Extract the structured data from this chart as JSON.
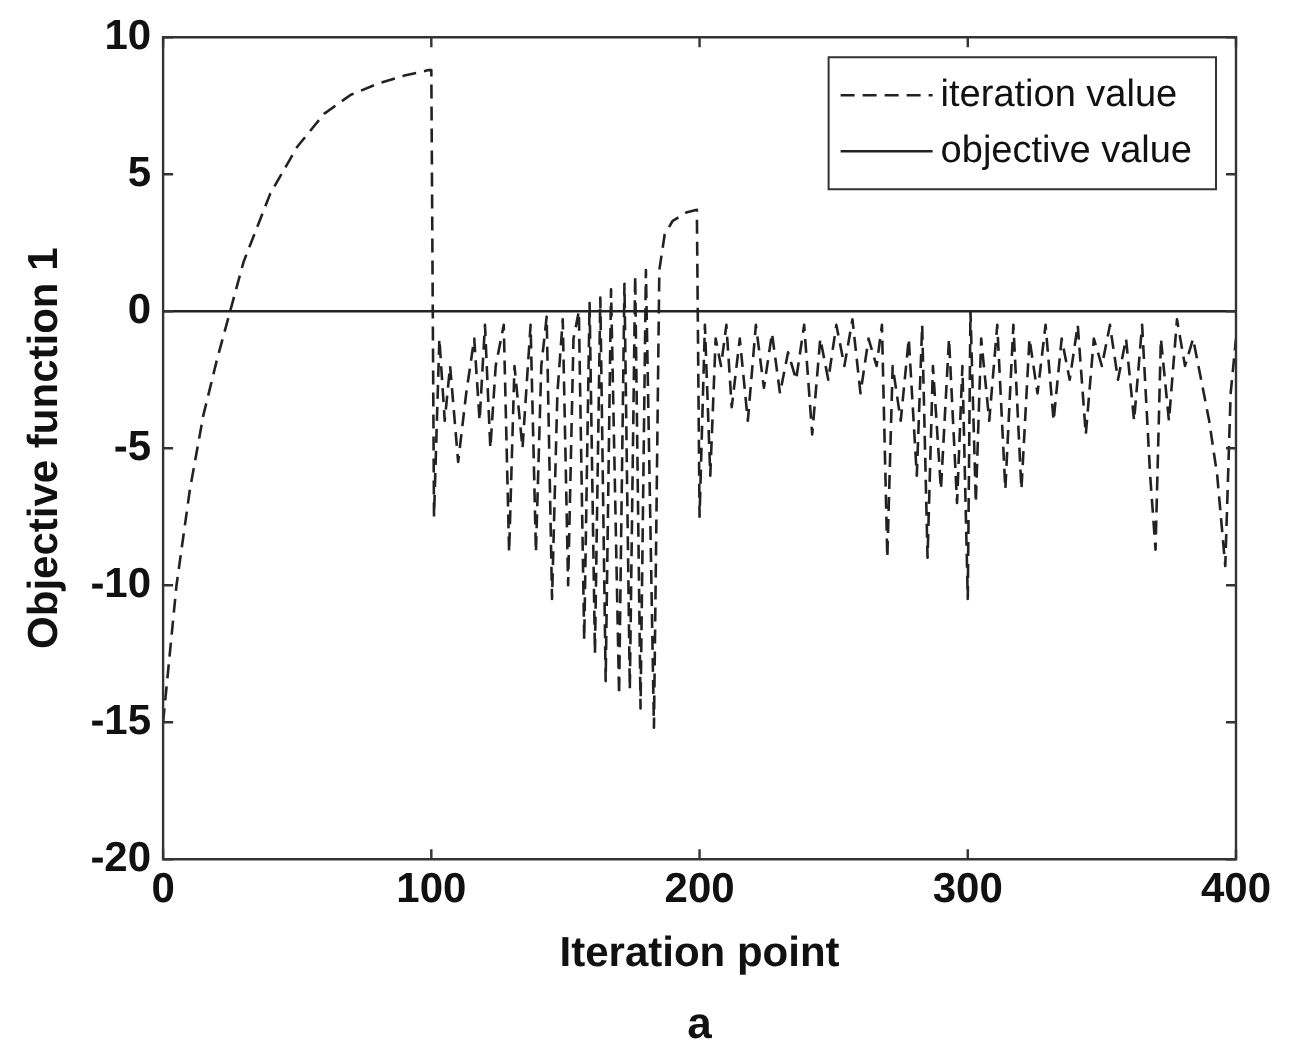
{
  "chart_data": {
    "type": "line",
    "xlabel": "Iteration point",
    "ylabel": "Objective function 1",
    "annotations": [
      "a"
    ],
    "xlim": [
      0,
      400
    ],
    "xticks": [
      0,
      100,
      200,
      300,
      400
    ],
    "ylim": [
      -20,
      10
    ],
    "yticks": [
      -20,
      -15,
      -10,
      -5,
      0,
      5,
      10
    ],
    "grid": false,
    "legend": "top right",
    "marker": "none",
    "series": [
      {
        "name": "iteration value",
        "color": "#222222",
        "line_style": "dashed",
        "x": [
          0,
          5,
          10,
          15,
          20,
          25,
          30,
          40,
          50,
          60,
          70,
          80,
          90,
          99,
          100,
          101,
          103,
          105,
          107,
          110,
          113,
          116,
          118,
          120,
          122,
          124,
          127,
          129,
          131,
          134,
          137,
          139,
          141,
          143,
          145,
          147,
          149,
          151,
          153,
          155,
          157,
          159,
          161,
          163,
          165,
          167,
          170,
          172,
          174,
          176,
          178,
          180,
          183,
          185,
          187,
          190,
          195,
          199,
          200,
          202,
          204,
          206,
          208,
          210,
          212,
          215,
          218,
          221,
          224,
          227,
          230,
          233,
          236,
          239,
          242,
          245,
          248,
          251,
          254,
          257,
          260,
          263,
          266,
          268,
          270,
          272,
          275,
          278,
          281,
          283,
          285,
          287,
          290,
          293,
          296,
          298,
          300,
          301,
          303,
          305,
          308,
          311,
          314,
          317,
          320,
          323,
          326,
          329,
          332,
          335,
          338,
          341,
          344,
          347,
          350,
          353,
          356,
          359,
          362,
          365,
          368,
          370,
          372,
          375,
          378,
          381,
          384,
          387,
          390,
          393,
          396,
          398,
          400
        ],
        "values": [
          -15,
          -10,
          -6.5,
          -3.8,
          -1.8,
          0,
          1.8,
          4.3,
          6,
          7.2,
          7.9,
          8.3,
          8.6,
          8.8,
          8.8,
          -7.5,
          -1,
          -4,
          -2,
          -5.5,
          -3,
          -1,
          -4,
          -0.5,
          -5,
          -2,
          -0.5,
          -8.8,
          -2,
          -5,
          -0.5,
          -8.8,
          -2,
          -0.2,
          -10.5,
          -3,
          -0.3,
          -10,
          -1,
          0,
          -12,
          0.3,
          -12.5,
          0.5,
          -13.5,
          0.8,
          -14,
          1,
          -13.8,
          1.3,
          -14.5,
          1.5,
          -15.2,
          1.5,
          2.8,
          3.3,
          3.6,
          3.7,
          -7.5,
          -0.5,
          -6,
          -1,
          -2,
          -0.5,
          -3.5,
          -1,
          -4,
          -0.5,
          -2.8,
          -0.8,
          -3,
          -1.5,
          -2.5,
          -0.5,
          -4.5,
          -1,
          -2.5,
          -0.5,
          -2,
          -0.3,
          -3,
          -1,
          -2,
          -0.5,
          -9,
          -2,
          -4,
          -1,
          -6,
          -0.5,
          -9,
          -2,
          -6.5,
          -1,
          -7,
          -2,
          -10.5,
          0,
          -7,
          -1,
          -4,
          -0.5,
          -6.5,
          -0.5,
          -6.5,
          -1,
          -3,
          -0.5,
          -4,
          -1,
          -2.5,
          -0.5,
          -4.5,
          -1,
          -2,
          -0.5,
          -2.5,
          -1,
          -4,
          -0.5,
          -6,
          -8.7,
          -1,
          -4,
          -0.3,
          -2,
          -1,
          -2.5,
          -4,
          -6,
          -9.3,
          -3,
          -1
        ]
      },
      {
        "name": "objective value",
        "color": "#222222",
        "line_style": "solid",
        "x": [
          0,
          400
        ],
        "values": [
          0,
          0
        ]
      }
    ]
  }
}
